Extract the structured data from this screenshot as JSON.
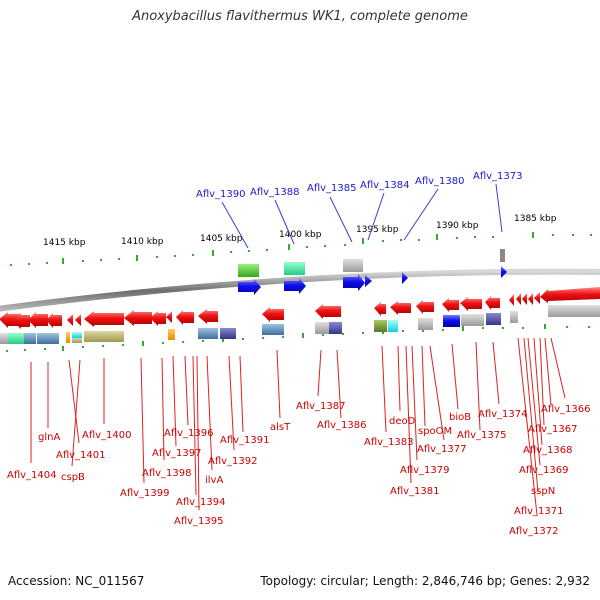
{
  "title": "Anoxybacillus flavithermus WK1, complete genome",
  "footer": {
    "accession": "Accession: NC_011567",
    "summary": "Topology: circular; Length: 2,846,746 bp; Genes: 2,932"
  },
  "colors": {
    "forward_gene": "#0000ee",
    "reverse_gene": "#ee0000",
    "backbone": "#777777",
    "ticks": "#008800",
    "label_forward": "#0000cc",
    "label_reverse": "#cc0000"
  },
  "scale_labels": [
    "1415 kbp",
    "1410 kbp",
    "1405 kbp",
    "1400 kbp",
    "1395 kbp",
    "1390 kbp",
    "1385 kbp"
  ],
  "top_labels": [
    "Aflv_1390",
    "Aflv_1388",
    "Aflv_1385",
    "Aflv_1384",
    "Aflv_1380",
    "Aflv_1373"
  ],
  "bottom_labels": [
    "Aflv_1404",
    "glnA",
    "Aflv_1401",
    "cspB",
    "Aflv_1400",
    "Aflv_1399",
    "Aflv_1398",
    "Aflv_1397",
    "Aflv_1396",
    "Aflv_1394",
    "Aflv_1395",
    "ilvA",
    "Aflv_1392",
    "Aflv_1391",
    "alsT",
    "Aflv_1387",
    "Aflv_1386",
    "Aflv_1383",
    "deoD",
    "Aflv_1381",
    "Aflv_1379",
    "spoOM",
    "Aflv_1377",
    "bioB",
    "Aflv_1375",
    "Aflv_1374",
    "Aflv_1366",
    "Aflv_1367",
    "Aflv_1368",
    "Aflv_1369",
    "sspN",
    "Aflv_1371",
    "Aflv_1372"
  ]
}
